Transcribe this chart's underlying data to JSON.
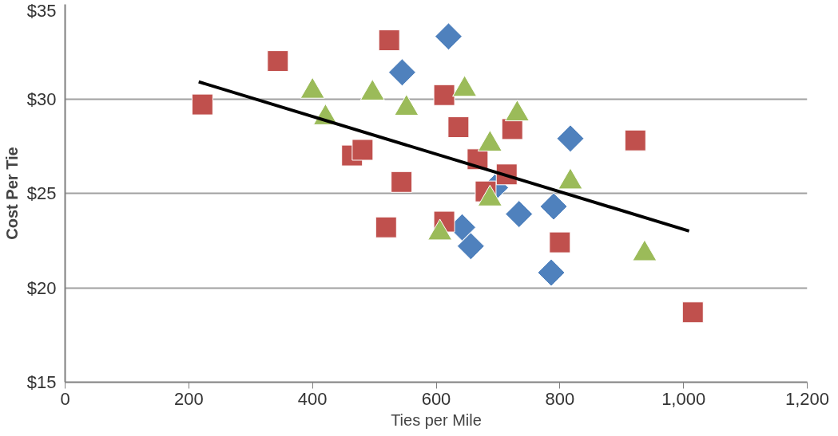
{
  "chart_data": {
    "type": "scatter",
    "xlabel": "Ties per Mile",
    "ylabel": "Cost Per Tie",
    "xlim": [
      0,
      1200
    ],
    "ylim": [
      15,
      35
    ],
    "xticks": [
      0,
      200,
      400,
      600,
      800,
      {
        "value": 1000,
        "label": "1,000"
      },
      {
        "value": 1200,
        "label": "1,200"
      }
    ],
    "yticks": [
      {
        "value": 15,
        "label": "$15"
      },
      {
        "value": 20,
        "label": "$20"
      },
      {
        "value": 25,
        "label": "$25"
      },
      {
        "value": 30,
        "label": "$30"
      },
      {
        "value": 35,
        "label": "$35"
      }
    ],
    "grid": "y",
    "series": [
      {
        "color": "#4f81bd",
        "marker": "diamond",
        "x": [
          620,
          545,
          817,
          695,
          642,
          656,
          734,
          790,
          786
        ],
        "values": [
          33.3,
          31.4,
          27.9,
          25.3,
          23.2,
          22.2,
          23.9,
          24.3,
          20.8
        ]
      },
      {
        "color": "#c0504d",
        "marker": "square",
        "x": [
          222,
          344,
          524,
          464,
          481,
          544,
          519,
          613,
          636,
          723,
          667,
          714,
          680,
          613,
          800,
          922,
          1015
        ],
        "values": [
          29.7,
          32.0,
          33.1,
          27.0,
          27.3,
          25.6,
          23.2,
          30.2,
          28.5,
          28.4,
          26.8,
          26.0,
          25.1,
          23.5,
          22.4,
          27.8,
          18.7
        ]
      },
      {
        "color": "#9bbb59",
        "marker": "triangle",
        "x": [
          400,
          421,
          497,
          552,
          646,
          731,
          687,
          606,
          687,
          817,
          937
        ],
        "values": [
          30.4,
          29.0,
          30.3,
          29.5,
          30.5,
          29.2,
          27.6,
          22.9,
          24.7,
          25.6,
          21.8
        ]
      },
      {
        "type": "line",
        "color": "#000000",
        "marker": "none",
        "x": [
          216,
          1009
        ],
        "values": [
          30.9,
          23.0
        ]
      }
    ]
  }
}
